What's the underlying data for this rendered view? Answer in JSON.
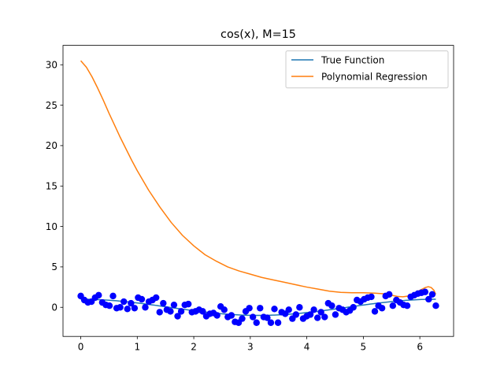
{
  "chart_data": {
    "type": "scatter",
    "title": "cos(x), M=15",
    "xlabel": "",
    "ylabel": "",
    "xlim": [
      -0.3142,
      6.5973
    ],
    "ylim": [
      -3.6,
      32.4
    ],
    "xticks": [
      0,
      1,
      2,
      3,
      4,
      5,
      6
    ],
    "yticks": [
      0,
      5,
      10,
      15,
      20,
      25,
      30
    ],
    "grid": false,
    "legend_position": "top-right",
    "colors": {
      "true_function": "#1f77b4",
      "polynomial_regression": "#ff7f0e",
      "samples": "#0000ff"
    },
    "series": [
      {
        "name": "True Function",
        "kind": "line",
        "function": "cos",
        "x_range": [
          0,
          6.2832
        ]
      },
      {
        "name": "Polynomial Regression",
        "kind": "line",
        "x": [
          0.0,
          0.1,
          0.2,
          0.3,
          0.4,
          0.5,
          0.6,
          0.7,
          0.8,
          0.9,
          1.0,
          1.2,
          1.4,
          1.6,
          1.8,
          2.0,
          2.2,
          2.4,
          2.6,
          2.8,
          3.0,
          3.2,
          3.4,
          3.6,
          3.8,
          4.0,
          4.2,
          4.4,
          4.6,
          4.8,
          5.0,
          5.2,
          5.4,
          5.5,
          5.6,
          5.7,
          5.8,
          5.9,
          6.0,
          6.1,
          6.15,
          6.2,
          6.25,
          6.28
        ],
        "y": [
          30.5,
          29.7,
          28.5,
          27.1,
          25.6,
          24.0,
          22.5,
          21.0,
          19.6,
          18.2,
          16.9,
          14.5,
          12.4,
          10.5,
          8.9,
          7.6,
          6.5,
          5.7,
          5.0,
          4.5,
          4.1,
          3.7,
          3.4,
          3.1,
          2.8,
          2.5,
          2.25,
          2.0,
          1.85,
          1.8,
          1.8,
          1.75,
          1.65,
          1.5,
          1.35,
          1.3,
          1.4,
          1.7,
          2.1,
          2.45,
          2.55,
          2.45,
          2.1,
          1.6
        ]
      },
      {
        "name": "",
        "kind": "scatter",
        "x": [
          0.0,
          0.063,
          0.127,
          0.19,
          0.254,
          0.317,
          0.381,
          0.444,
          0.508,
          0.571,
          0.635,
          0.698,
          0.762,
          0.825,
          0.889,
          0.952,
          1.015,
          1.079,
          1.142,
          1.206,
          1.269,
          1.333,
          1.396,
          1.46,
          1.523,
          1.587,
          1.65,
          1.714,
          1.777,
          1.841,
          1.904,
          1.967,
          2.031,
          2.094,
          2.158,
          2.221,
          2.285,
          2.348,
          2.412,
          2.475,
          2.539,
          2.602,
          2.666,
          2.729,
          2.793,
          2.856,
          2.919,
          2.983,
          3.046,
          3.11,
          3.173,
          3.237,
          3.3,
          3.364,
          3.427,
          3.491,
          3.554,
          3.618,
          3.681,
          3.745,
          3.808,
          3.871,
          3.935,
          3.998,
          4.062,
          4.125,
          4.189,
          4.252,
          4.316,
          4.379,
          4.443,
          4.506,
          4.57,
          4.633,
          4.697,
          4.76,
          4.823,
          4.887,
          4.95,
          5.014,
          5.077,
          5.141,
          5.204,
          5.268,
          5.331,
          5.395,
          5.458,
          5.522,
          5.585,
          5.649,
          5.712,
          5.776,
          5.839,
          5.902,
          5.966,
          6.029,
          6.093,
          6.156,
          6.22,
          6.283
        ],
        "y": [
          1.4,
          0.9,
          0.6,
          0.7,
          1.2,
          1.5,
          0.6,
          0.3,
          0.2,
          1.4,
          -0.1,
          0.0,
          0.7,
          -0.2,
          0.5,
          -0.1,
          1.2,
          1.0,
          0.0,
          0.7,
          0.9,
          1.2,
          -0.6,
          0.5,
          -0.3,
          -0.5,
          0.3,
          -1.1,
          -0.5,
          0.3,
          0.4,
          -0.6,
          -0.5,
          -0.3,
          -0.5,
          -1.1,
          -0.8,
          -0.7,
          -1.0,
          0.1,
          -0.3,
          -1.2,
          -1.0,
          -1.8,
          -1.9,
          -1.4,
          -0.5,
          -0.1,
          -1.2,
          -1.9,
          -0.1,
          -1.2,
          -1.3,
          -1.9,
          -0.2,
          -1.9,
          -0.6,
          -0.8,
          -0.3,
          -1.4,
          -0.9,
          0.0,
          -1.4,
          -1.1,
          -0.9,
          -0.3,
          -1.3,
          -0.6,
          -1.2,
          0.5,
          0.2,
          -0.9,
          -0.1,
          -0.3,
          -0.6,
          -0.4,
          0.0,
          0.9,
          0.7,
          1.0,
          1.2,
          1.3,
          -0.5,
          0.2,
          -0.1,
          1.4,
          1.6,
          0.2,
          0.9,
          0.6,
          0.3,
          0.2,
          1.3,
          1.5,
          1.7,
          1.8,
          1.9,
          1.0,
          1.6,
          0.2
        ]
      }
    ]
  }
}
